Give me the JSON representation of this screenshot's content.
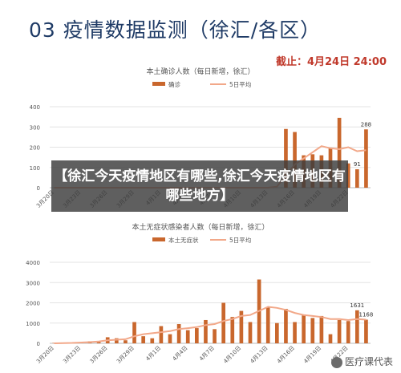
{
  "page": {
    "title": "03 疫情数据监测（徐汇/各区）",
    "deadline": "截止：4月24日 24:00",
    "banner": "【徐汇今天疫情地区有哪些,徐汇今天疫情地区有哪些地方】",
    "watermark": "医疗课代表"
  },
  "colors": {
    "bar": "#c9672d",
    "line": "#f2a889",
    "axis": "#bbbbbb",
    "text": "#555555"
  },
  "chart_data": [
    {
      "type": "bar",
      "title": "本土确诊人数（每日新增，徐汇）",
      "legend": [
        "确诊",
        "5日平均"
      ],
      "ylim": [
        0,
        400
      ],
      "yticks": [
        0,
        100,
        200,
        300,
        400
      ],
      "categories": [
        "3月20日",
        "3月21日",
        "3月22日",
        "3月23日",
        "3月24日",
        "3月25日",
        "3月26日",
        "3月27日",
        "3月28日",
        "3月29日",
        "3月30日",
        "3月31日",
        "4月1日",
        "4月2日",
        "4月3日",
        "4月4日",
        "4月5日",
        "4月6日",
        "4月7日",
        "4月8日",
        "4月9日",
        "4月10日",
        "4月11日",
        "4月12日",
        "4月13日",
        "4月14日",
        "4月15日",
        "4月16日",
        "4月17日",
        "4月18日",
        "4月19日",
        "4月20日",
        "4月21日",
        "4月22日",
        "4月23日",
        "4月24日"
      ],
      "xtick_labels": [
        "3月20日",
        "3月23日",
        "3月26日",
        "3月29日",
        "4月1日",
        "4月4日",
        "4月7日",
        "4月10日",
        "4月13日",
        "4月16日",
        "4月19日",
        "4月22日"
      ],
      "xtick_index": [
        0,
        3,
        6,
        9,
        12,
        15,
        18,
        21,
        24,
        27,
        30,
        33
      ],
      "values": [
        0,
        0,
        0,
        0,
        0,
        0,
        0,
        0,
        0,
        0,
        0,
        0,
        0,
        0,
        0,
        0,
        0,
        0,
        0,
        0,
        0,
        0,
        0,
        0,
        0,
        0,
        290,
        275,
        160,
        165,
        160,
        195,
        345,
        120,
        91,
        288
      ],
      "avg": [
        0,
        0,
        0,
        0,
        0,
        0,
        0,
        0,
        0,
        0,
        0,
        0,
        0,
        0,
        0,
        0,
        0,
        0,
        0,
        0,
        0,
        0,
        0,
        0,
        0,
        5,
        60,
        115,
        145,
        175,
        205,
        195,
        190,
        200,
        180,
        185
      ],
      "labels": [
        {
          "index": 35,
          "text": "288"
        },
        {
          "index": 34,
          "text": "91"
        }
      ]
    },
    {
      "type": "bar",
      "title": "本土无症状感染者人数（每日新增，徐汇）",
      "legend": [
        "本土无症状",
        "5日平均"
      ],
      "ylim": [
        0,
        4000
      ],
      "yticks": [
        0,
        1000,
        2000,
        3000,
        4000
      ],
      "categories": [
        "3月20日",
        "3月21日",
        "3月22日",
        "3月23日",
        "3月24日",
        "3月25日",
        "3月26日",
        "3月27日",
        "3月28日",
        "3月29日",
        "3月30日",
        "3月31日",
        "4月1日",
        "4月2日",
        "4月3日",
        "4月4日",
        "4月5日",
        "4月6日",
        "4月7日",
        "4月8日",
        "4月9日",
        "4月10日",
        "4月11日",
        "4月12日",
        "4月13日",
        "4月14日",
        "4月15日",
        "4月16日",
        "4月17日",
        "4月18日",
        "4月19日",
        "4月20日",
        "4月21日",
        "4月22日",
        "4月23日",
        "4月24日"
      ],
      "xtick_labels": [
        "3月20日",
        "3月23日",
        "3月26日",
        "3月29日",
        "4月1日",
        "4月4日",
        "4月7日",
        "4月10日",
        "4月13日",
        "4月16日",
        "4月19日",
        "4月22日"
      ],
      "xtick_index": [
        0,
        3,
        6,
        9,
        12,
        15,
        18,
        21,
        24,
        27,
        30,
        33
      ],
      "values": [
        20,
        30,
        40,
        60,
        100,
        120,
        300,
        250,
        150,
        1050,
        350,
        250,
        850,
        450,
        950,
        650,
        750,
        1150,
        700,
        2000,
        1300,
        1600,
        1050,
        3150,
        1800,
        1000,
        1700,
        1050,
        1400,
        1250,
        1350,
        450,
        1150,
        1100,
        1631,
        1168
      ],
      "avg": [
        0,
        10,
        20,
        40,
        60,
        90,
        150,
        180,
        200,
        350,
        450,
        500,
        550,
        600,
        700,
        750,
        800,
        900,
        950,
        1100,
        1200,
        1350,
        1400,
        1600,
        1800,
        1750,
        1650,
        1500,
        1400,
        1350,
        1300,
        1200,
        1200,
        1150,
        1200,
        1168
      ],
      "labels": [
        {
          "index": 34,
          "text": "1631"
        },
        {
          "index": 35,
          "text": "1168"
        }
      ]
    }
  ]
}
